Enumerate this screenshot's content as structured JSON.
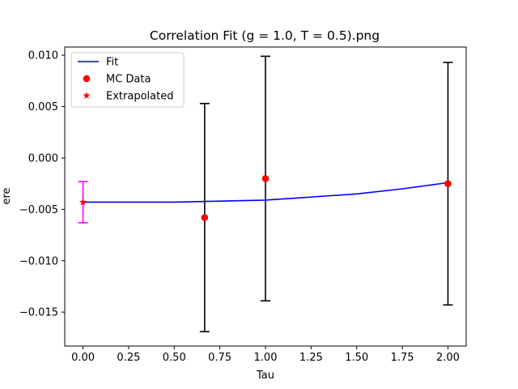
{
  "chart_data": {
    "type": "scatter",
    "title": "Correlation Fit (g = 1.0, T = 0.5).png",
    "xlabel": "Tau",
    "ylabel": "ere",
    "xlim": [
      -0.1,
      2.1
    ],
    "ylim": [
      -0.0183,
      0.0108
    ],
    "x_ticks": [
      0.0,
      0.25,
      0.5,
      0.75,
      1.0,
      1.25,
      1.5,
      1.75,
      2.0
    ],
    "x_tick_labels": [
      "0.00",
      "0.25",
      "0.50",
      "0.75",
      "1.00",
      "1.25",
      "1.50",
      "1.75",
      "2.00"
    ],
    "y_ticks": [
      -0.015,
      -0.01,
      -0.005,
      0.0,
      0.005,
      0.01
    ],
    "y_tick_labels": [
      "−0.015",
      "−0.010",
      "−0.005",
      "0.000",
      "0.005",
      "0.010"
    ],
    "grid": false,
    "legend_position": "upper-left",
    "series": [
      {
        "name": "Fit",
        "kind": "line",
        "color": "#0000ff",
        "x": [
          0.0,
          0.25,
          0.5,
          0.75,
          1.0,
          1.25,
          1.5,
          1.75,
          2.0
        ],
        "y": [
          -0.0043,
          -0.0043,
          -0.0043,
          -0.0042,
          -0.0041,
          -0.0038,
          -0.0035,
          -0.003,
          -0.0024
        ]
      },
      {
        "name": "MC Data",
        "kind": "scatter",
        "marker": "circle",
        "color": "#ff0000",
        "errorbar_color": "#000000",
        "x": [
          0.6667,
          1.0,
          2.0
        ],
        "y": [
          -0.0058,
          -0.002,
          -0.0025
        ],
        "yerr": [
          0.0111,
          0.0119,
          0.0118
        ]
      },
      {
        "name": "Extrapolated",
        "kind": "scatter",
        "marker": "star",
        "color": "#ff0000",
        "errorbar_color": "#ff00ff",
        "x": [
          0.0
        ],
        "y": [
          -0.0043
        ],
        "yerr": [
          0.002
        ]
      }
    ]
  }
}
